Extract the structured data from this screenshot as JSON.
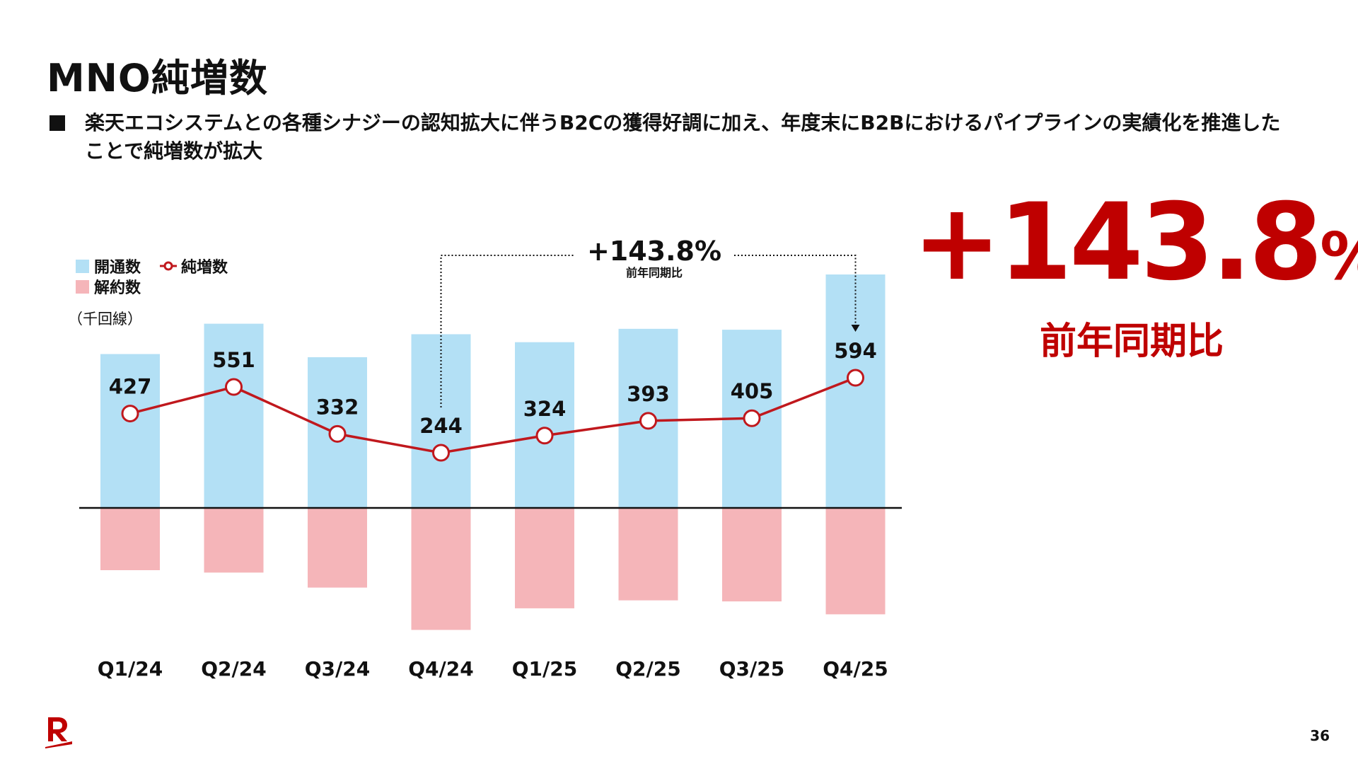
{
  "slide": {
    "title": "MNO純増数",
    "bullet": "楽天エコシステムとの各種シナジーの認知拡大に伴うB2Cの獲得好調に加え、年度末にB2Bにおけるパイプラインの実績化を推進したことで純増数が拡大",
    "highlight": {
      "value": "+143.8",
      "unit": "%",
      "caption": "前年同期比"
    },
    "page_number": "36"
  },
  "colors": {
    "new_activations": "#b3e0f5",
    "churn": "#f5b5b9",
    "net_adds_line": "#c0181d",
    "accent_red": "#bf0000",
    "axis": "#111111"
  },
  "chart_data": {
    "type": "bar",
    "unit_label": "（千回線）",
    "categories": [
      "Q1/24",
      "Q2/24",
      "Q3/24",
      "Q4/24",
      "Q1/25",
      "Q2/25",
      "Q3/25",
      "Q4/25"
    ],
    "series": [
      {
        "name": "開通数",
        "kind": "bar",
        "values": [
          1025,
          1227,
          1004,
          1157,
          1104,
          1193,
          1187,
          1555
        ]
      },
      {
        "name": "解約数",
        "kind": "bar",
        "values": [
          -410,
          -426,
          -526,
          -808,
          -664,
          -611,
          -618,
          -704
        ]
      },
      {
        "name": "純増数",
        "kind": "line",
        "values": [
          427,
          551,
          332,
          244,
          324,
          393,
          405,
          594
        ]
      }
    ],
    "data_labels": [
      "427",
      "551",
      "332",
      "244",
      "324",
      "393",
      "405",
      "594"
    ],
    "legend": [
      "開通数",
      "純増数",
      "解約数"
    ],
    "legend_position": "top-left",
    "annotation": {
      "text": "+143.8%",
      "caption": "前年同期比",
      "from": "Q4/24",
      "to": "Q4/25"
    }
  }
}
